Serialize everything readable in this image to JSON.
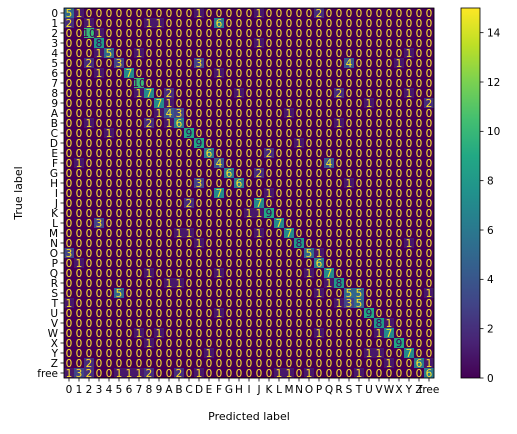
{
  "chart_data": {
    "type": "heatmap",
    "title": "",
    "xlabel": "Predicted label",
    "ylabel": "True label",
    "x_tick_labels": [
      "0",
      "1",
      "2",
      "3",
      "4",
      "5",
      "6",
      "7",
      "8",
      "9",
      "A",
      "B",
      "C",
      "D",
      "E",
      "F",
      "G",
      "H",
      "I",
      "J",
      "K",
      "L",
      "M",
      "N",
      "O",
      "P",
      "Q",
      "R",
      "S",
      "T",
      "U",
      "V",
      "W",
      "X",
      "Y",
      "Z",
      "free"
    ],
    "y_tick_labels": [
      "0",
      "1",
      "2",
      "3",
      "4",
      "5",
      "6",
      "7",
      "8",
      "9",
      "A",
      "B",
      "C",
      "D",
      "E",
      "F",
      "G",
      "H",
      "I",
      "J",
      "K",
      "L",
      "M",
      "N",
      "O",
      "P",
      "Q",
      "R",
      "S",
      "T",
      "U",
      "V",
      "W",
      "X",
      "Y",
      "Z",
      "free"
    ],
    "colorbar": {
      "min": 0,
      "max": 15,
      "ticks": [
        0,
        2,
        4,
        6,
        8,
        10,
        12,
        14
      ],
      "colormap": "viridis"
    },
    "values": [
      [
        5,
        1,
        0,
        0,
        0,
        0,
        0,
        0,
        0,
        0,
        0,
        0,
        0,
        1,
        0,
        0,
        0,
        0,
        0,
        1,
        0,
        0,
        0,
        0,
        0,
        2,
        0,
        0,
        0,
        0,
        0,
        0,
        0,
        0,
        0,
        0,
        0
      ],
      [
        2,
        0,
        1,
        0,
        0,
        0,
        0,
        0,
        1,
        1,
        0,
        0,
        0,
        0,
        0,
        6,
        0,
        0,
        0,
        0,
        0,
        0,
        0,
        0,
        0,
        0,
        0,
        0,
        0,
        0,
        0,
        0,
        0,
        0,
        0,
        0,
        0
      ],
      [
        0,
        0,
        10,
        1,
        0,
        0,
        0,
        0,
        0,
        0,
        0,
        0,
        0,
        0,
        0,
        0,
        0,
        0,
        0,
        0,
        0,
        0,
        0,
        0,
        0,
        0,
        0,
        0,
        0,
        0,
        0,
        0,
        0,
        0,
        0,
        0,
        0
      ],
      [
        0,
        0,
        0,
        8,
        0,
        0,
        0,
        0,
        0,
        0,
        0,
        0,
        0,
        0,
        0,
        0,
        0,
        0,
        0,
        1,
        0,
        0,
        0,
        0,
        0,
        0,
        0,
        0,
        0,
        0,
        0,
        0,
        0,
        0,
        0,
        0,
        0
      ],
      [
        0,
        0,
        0,
        1,
        5,
        0,
        0,
        1,
        0,
        0,
        0,
        0,
        0,
        0,
        0,
        0,
        0,
        0,
        0,
        0,
        0,
        0,
        0,
        0,
        0,
        0,
        0,
        0,
        0,
        0,
        0,
        0,
        0,
        0,
        1,
        0,
        0
      ],
      [
        0,
        0,
        2,
        0,
        0,
        3,
        0,
        0,
        0,
        0,
        0,
        0,
        0,
        3,
        0,
        0,
        0,
        0,
        0,
        0,
        0,
        0,
        0,
        0,
        0,
        0,
        0,
        0,
        4,
        0,
        0,
        0,
        0,
        1,
        0,
        0,
        0
      ],
      [
        0,
        0,
        0,
        1,
        0,
        0,
        7,
        0,
        0,
        0,
        0,
        0,
        0,
        0,
        0,
        1,
        0,
        0,
        0,
        0,
        0,
        0,
        0,
        0,
        0,
        0,
        0,
        0,
        0,
        0,
        0,
        0,
        0,
        0,
        0,
        0,
        0
      ],
      [
        0,
        0,
        0,
        0,
        0,
        0,
        0,
        10,
        0,
        0,
        0,
        0,
        0,
        0,
        0,
        0,
        0,
        0,
        0,
        0,
        0,
        0,
        0,
        0,
        0,
        0,
        0,
        0,
        0,
        0,
        0,
        0,
        0,
        0,
        0,
        0,
        0
      ],
      [
        0,
        0,
        0,
        0,
        0,
        0,
        0,
        1,
        7,
        0,
        2,
        0,
        0,
        0,
        0,
        0,
        0,
        1,
        0,
        0,
        0,
        0,
        0,
        0,
        0,
        0,
        0,
        2,
        0,
        0,
        0,
        0,
        0,
        0,
        1,
        0,
        0
      ],
      [
        0,
        0,
        0,
        0,
        0,
        0,
        0,
        0,
        0,
        7,
        1,
        0,
        0,
        0,
        0,
        0,
        0,
        0,
        0,
        0,
        0,
        0,
        0,
        0,
        0,
        0,
        0,
        0,
        0,
        0,
        1,
        0,
        0,
        0,
        0,
        0,
        2
      ],
      [
        0,
        0,
        0,
        0,
        0,
        0,
        0,
        0,
        0,
        1,
        4,
        3,
        0,
        0,
        0,
        0,
        0,
        0,
        0,
        0,
        0,
        0,
        1,
        0,
        0,
        0,
        0,
        0,
        0,
        0,
        0,
        0,
        0,
        0,
        0,
        0,
        0
      ],
      [
        0,
        0,
        1,
        0,
        0,
        0,
        0,
        0,
        2,
        0,
        1,
        6,
        0,
        0,
        0,
        0,
        0,
        0,
        0,
        0,
        0,
        0,
        0,
        0,
        0,
        0,
        0,
        1,
        0,
        0,
        0,
        0,
        0,
        0,
        0,
        0,
        0
      ],
      [
        0,
        0,
        0,
        0,
        1,
        0,
        0,
        0,
        0,
        0,
        0,
        0,
        9,
        0,
        0,
        0,
        0,
        0,
        0,
        0,
        0,
        0,
        0,
        0,
        0,
        0,
        0,
        0,
        0,
        0,
        0,
        0,
        0,
        0,
        0,
        0,
        0
      ],
      [
        0,
        0,
        0,
        0,
        0,
        0,
        0,
        0,
        0,
        0,
        0,
        0,
        0,
        9,
        0,
        0,
        0,
        0,
        0,
        0,
        0,
        0,
        0,
        1,
        0,
        0,
        0,
        0,
        0,
        0,
        0,
        0,
        0,
        0,
        0,
        0,
        0
      ],
      [
        0,
        0,
        0,
        0,
        0,
        0,
        0,
        0,
        0,
        0,
        0,
        0,
        0,
        0,
        6,
        0,
        0,
        0,
        0,
        0,
        2,
        0,
        0,
        0,
        0,
        0,
        0,
        0,
        0,
        0,
        0,
        0,
        0,
        0,
        0,
        0,
        0
      ],
      [
        0,
        1,
        0,
        0,
        0,
        0,
        0,
        0,
        0,
        0,
        0,
        0,
        0,
        0,
        0,
        4,
        0,
        0,
        0,
        0,
        0,
        0,
        0,
        0,
        0,
        0,
        4,
        0,
        0,
        0,
        0,
        0,
        0,
        0,
        0,
        0,
        0
      ],
      [
        0,
        0,
        0,
        0,
        0,
        0,
        0,
        0,
        0,
        0,
        0,
        0,
        0,
        0,
        0,
        0,
        6,
        0,
        0,
        2,
        0,
        0,
        0,
        0,
        0,
        0,
        0,
        0,
        0,
        0,
        0,
        0,
        0,
        0,
        0,
        0,
        0
      ],
      [
        0,
        0,
        0,
        0,
        0,
        0,
        0,
        0,
        0,
        0,
        0,
        0,
        0,
        3,
        0,
        0,
        0,
        6,
        0,
        0,
        0,
        0,
        0,
        0,
        0,
        0,
        0,
        0,
        1,
        0,
        0,
        0,
        0,
        0,
        0,
        0,
        0
      ],
      [
        0,
        0,
        0,
        0,
        0,
        0,
        0,
        0,
        0,
        0,
        0,
        0,
        0,
        0,
        0,
        7,
        0,
        0,
        0,
        0,
        1,
        0,
        0,
        0,
        0,
        0,
        0,
        0,
        0,
        0,
        0,
        0,
        0,
        0,
        0,
        0,
        0
      ],
      [
        0,
        0,
        0,
        0,
        0,
        0,
        0,
        0,
        0,
        0,
        0,
        0,
        2,
        0,
        0,
        0,
        0,
        0,
        0,
        7,
        0,
        0,
        0,
        0,
        0,
        0,
        0,
        0,
        0,
        0,
        0,
        0,
        0,
        0,
        0,
        0,
        0
      ],
      [
        0,
        0,
        0,
        0,
        0,
        0,
        0,
        0,
        0,
        0,
        0,
        0,
        0,
        0,
        0,
        0,
        0,
        0,
        1,
        1,
        9,
        0,
        0,
        0,
        0,
        0,
        0,
        0,
        0,
        0,
        0,
        0,
        0,
        0,
        0,
        0,
        0
      ],
      [
        0,
        0,
        0,
        3,
        0,
        0,
        0,
        0,
        0,
        0,
        0,
        0,
        0,
        0,
        0,
        0,
        0,
        0,
        0,
        0,
        0,
        7,
        0,
        0,
        0,
        0,
        0,
        0,
        0,
        0,
        0,
        0,
        0,
        0,
        0,
        0,
        0
      ],
      [
        0,
        0,
        0,
        0,
        0,
        0,
        0,
        0,
        0,
        0,
        0,
        1,
        1,
        0,
        0,
        0,
        0,
        0,
        0,
        1,
        0,
        0,
        7,
        0,
        0,
        0,
        0,
        0,
        0,
        0,
        0,
        0,
        0,
        0,
        0,
        0,
        0
      ],
      [
        0,
        0,
        0,
        0,
        0,
        0,
        0,
        0,
        0,
        0,
        0,
        0,
        0,
        1,
        0,
        0,
        0,
        0,
        0,
        0,
        0,
        0,
        0,
        8,
        0,
        0,
        0,
        0,
        0,
        0,
        0,
        0,
        0,
        0,
        1,
        0,
        0
      ],
      [
        3,
        0,
        0,
        0,
        0,
        0,
        0,
        0,
        0,
        0,
        0,
        0,
        0,
        0,
        0,
        0,
        0,
        0,
        0,
        0,
        0,
        0,
        0,
        0,
        5,
        1,
        0,
        0,
        0,
        0,
        0,
        0,
        0,
        0,
        0,
        0,
        0
      ],
      [
        0,
        1,
        0,
        0,
        0,
        0,
        0,
        0,
        0,
        0,
        0,
        0,
        0,
        0,
        0,
        0,
        0,
        0,
        0,
        0,
        0,
        0,
        0,
        0,
        0,
        6,
        0,
        0,
        0,
        0,
        0,
        0,
        0,
        0,
        0,
        0,
        0
      ],
      [
        0,
        0,
        0,
        0,
        0,
        0,
        0,
        0,
        1,
        0,
        0,
        0,
        0,
        0,
        0,
        1,
        0,
        0,
        0,
        0,
        0,
        0,
        0,
        0,
        1,
        0,
        7,
        0,
        0,
        0,
        0,
        0,
        0,
        0,
        0,
        0,
        0
      ],
      [
        0,
        0,
        0,
        0,
        0,
        0,
        0,
        0,
        0,
        0,
        1,
        1,
        0,
        0,
        0,
        0,
        0,
        0,
        0,
        0,
        0,
        0,
        0,
        0,
        0,
        0,
        1,
        8,
        0,
        0,
        0,
        0,
        0,
        0,
        0,
        0,
        0
      ],
      [
        0,
        0,
        0,
        0,
        0,
        5,
        0,
        0,
        0,
        0,
        0,
        0,
        0,
        0,
        0,
        0,
        0,
        0,
        0,
        0,
        0,
        0,
        0,
        0,
        0,
        1,
        0,
        0,
        5,
        5,
        0,
        0,
        0,
        0,
        0,
        0,
        1
      ],
      [
        1,
        0,
        0,
        0,
        0,
        0,
        0,
        0,
        0,
        0,
        0,
        0,
        0,
        0,
        0,
        0,
        0,
        0,
        0,
        0,
        0,
        0,
        0,
        0,
        0,
        0,
        0,
        1,
        3,
        5,
        0,
        0,
        0,
        0,
        0,
        0,
        0
      ],
      [
        0,
        0,
        0,
        0,
        0,
        0,
        0,
        0,
        0,
        0,
        0,
        0,
        0,
        0,
        0,
        1,
        0,
        0,
        0,
        0,
        0,
        0,
        0,
        0,
        0,
        0,
        0,
        0,
        0,
        0,
        9,
        0,
        0,
        0,
        0,
        0,
        0
      ],
      [
        0,
        0,
        0,
        0,
        0,
        0,
        0,
        0,
        0,
        0,
        0,
        0,
        0,
        0,
        0,
        0,
        0,
        0,
        0,
        0,
        0,
        0,
        0,
        0,
        0,
        0,
        0,
        0,
        0,
        0,
        0,
        8,
        1,
        0,
        0,
        0,
        0
      ],
      [
        0,
        0,
        0,
        0,
        0,
        0,
        0,
        1,
        0,
        1,
        0,
        0,
        0,
        0,
        0,
        0,
        0,
        0,
        0,
        0,
        0,
        0,
        0,
        0,
        0,
        1,
        0,
        0,
        0,
        0,
        0,
        1,
        7,
        0,
        0,
        0,
        0
      ],
      [
        0,
        0,
        0,
        0,
        0,
        0,
        0,
        0,
        1,
        0,
        0,
        0,
        0,
        0,
        0,
        0,
        0,
        0,
        0,
        0,
        0,
        0,
        0,
        0,
        0,
        0,
        0,
        0,
        0,
        0,
        0,
        0,
        0,
        9,
        0,
        0,
        0
      ],
      [
        0,
        0,
        0,
        0,
        0,
        0,
        0,
        0,
        0,
        0,
        0,
        0,
        0,
        0,
        1,
        0,
        0,
        0,
        0,
        0,
        0,
        0,
        0,
        0,
        0,
        0,
        0,
        0,
        0,
        0,
        1,
        1,
        0,
        0,
        7,
        0,
        0
      ],
      [
        0,
        0,
        2,
        0,
        0,
        0,
        0,
        0,
        0,
        0,
        0,
        0,
        0,
        0,
        0,
        0,
        0,
        0,
        0,
        0,
        0,
        0,
        0,
        0,
        0,
        0,
        0,
        0,
        0,
        0,
        0,
        0,
        1,
        0,
        0,
        6,
        1
      ],
      [
        1,
        3,
        2,
        0,
        0,
        1,
        1,
        1,
        2,
        0,
        0,
        2,
        0,
        1,
        0,
        0,
        0,
        0,
        0,
        0,
        0,
        1,
        1,
        0,
        1,
        0,
        0,
        0,
        0,
        1,
        0,
        0,
        0,
        0,
        0,
        0,
        6
      ]
    ]
  }
}
